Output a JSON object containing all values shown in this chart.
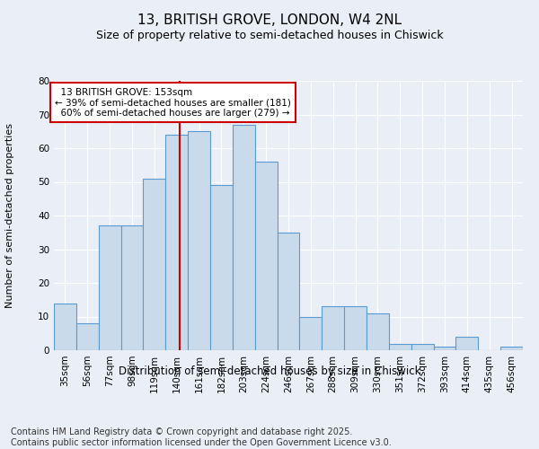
{
  "title": "13, BRITISH GROVE, LONDON, W4 2NL",
  "subtitle": "Size of property relative to semi-detached houses in Chiswick",
  "xlabel": "Distribution of semi-detached houses by size in Chiswick",
  "ylabel": "Number of semi-detached properties",
  "footer": "Contains HM Land Registry data © Crown copyright and database right 2025.\nContains public sector information licensed under the Open Government Licence v3.0.",
  "categories": [
    "35sqm",
    "56sqm",
    "77sqm",
    "98sqm",
    "119sqm",
    "140sqm",
    "161sqm",
    "182sqm",
    "203sqm",
    "224sqm",
    "246sqm",
    "267sqm",
    "288sqm",
    "309sqm",
    "330sqm",
    "351sqm",
    "372sqm",
    "393sqm",
    "414sqm",
    "435sqm",
    "456sqm"
  ],
  "values": [
    14,
    8,
    37,
    37,
    51,
    64,
    65,
    49,
    67,
    56,
    35,
    10,
    13,
    13,
    11,
    2,
    2,
    1,
    4,
    0,
    1
  ],
  "bar_color": "#c9daea",
  "bar_edge_color": "#5b9bd5",
  "property_size": 153,
  "property_label": "13 BRITISH GROVE: 153sqm",
  "pct_smaller": 39,
  "count_smaller": 181,
  "pct_larger": 60,
  "count_larger": 279,
  "vline_color": "#cc0000",
  "annotation_box_color": "#cc0000",
  "bg_color": "#eaeff7",
  "plot_bg_color": "#eaeff7",
  "grid_color": "#ffffff",
  "ylim": [
    0,
    80
  ],
  "yticks": [
    0,
    10,
    20,
    30,
    40,
    50,
    60,
    70,
    80
  ],
  "title_fontsize": 11,
  "subtitle_fontsize": 9,
  "xlabel_fontsize": 8.5,
  "ylabel_fontsize": 8,
  "tick_fontsize": 7.5,
  "footer_fontsize": 7,
  "annotation_fontsize": 7.5,
  "bin_width": 21
}
